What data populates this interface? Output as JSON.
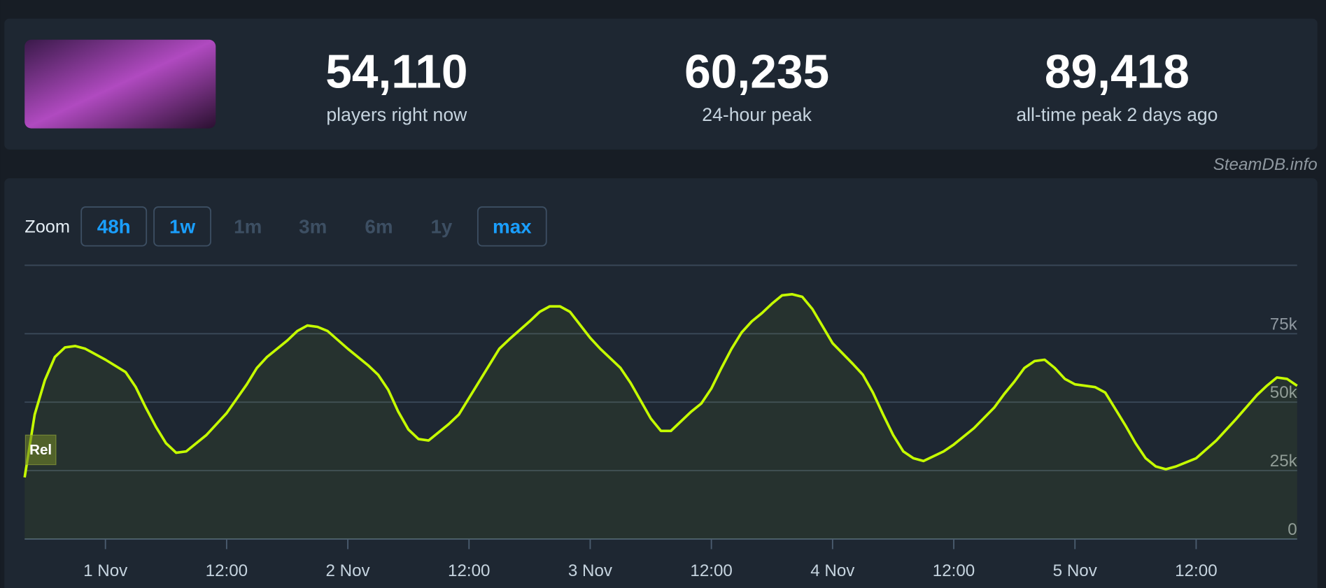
{
  "stats": [
    {
      "value": "54,110",
      "label": "players right now"
    },
    {
      "value": "60,235",
      "label": "24-hour peak"
    },
    {
      "value": "89,418",
      "label": "all-time peak 2 days ago"
    }
  ],
  "source": "SteamDB.info",
  "zoom": {
    "label": "Zoom",
    "options": [
      {
        "label": "48h",
        "enabled": true
      },
      {
        "label": "1w",
        "enabled": true
      },
      {
        "label": "1m",
        "enabled": false
      },
      {
        "label": "3m",
        "enabled": false
      },
      {
        "label": "6m",
        "enabled": false
      },
      {
        "label": "1y",
        "enabled": false
      },
      {
        "label": "max",
        "enabled": true
      }
    ]
  },
  "chart_data": {
    "type": "line",
    "color": "#c6ff00",
    "annotation": "Rel",
    "x": [
      -8,
      -7,
      -6,
      -5,
      -4,
      -3,
      -2,
      0,
      2,
      3,
      4,
      5,
      6,
      7,
      8,
      10,
      12,
      14,
      15,
      16,
      18,
      19,
      20,
      21,
      22,
      24,
      26,
      27,
      28,
      29,
      30,
      31,
      32,
      34,
      35,
      37,
      39,
      40,
      42,
      43,
      44,
      45,
      46,
      48,
      49,
      51,
      52,
      54,
      55,
      56,
      58,
      59,
      60,
      61,
      62,
      63,
      64,
      65,
      66,
      67,
      68,
      69,
      70,
      72,
      74,
      75,
      76,
      77,
      78,
      79,
      80,
      81,
      83,
      84,
      86,
      88,
      89,
      90,
      91,
      92,
      93,
      94,
      95,
      96,
      98,
      99,
      100,
      101,
      102,
      103,
      104,
      105,
      106,
      107,
      108,
      110,
      112,
      114,
      115,
      116,
      117,
      118
    ],
    "values": [
      22500,
      45500,
      58000,
      66500,
      70000,
      70500,
      69500,
      65500,
      61000,
      55500,
      48000,
      41000,
      35000,
      31500,
      32000,
      38000,
      46000,
      56500,
      62500,
      66500,
      72500,
      76000,
      78000,
      77500,
      76000,
      69500,
      63500,
      60000,
      54500,
      46500,
      40000,
      36500,
      36000,
      42000,
      45500,
      57500,
      69500,
      73000,
      79500,
      83000,
      85000,
      85000,
      83000,
      73500,
      69500,
      62500,
      57000,
      44000,
      39500,
      39500,
      46500,
      49500,
      55000,
      62500,
      69500,
      75500,
      79500,
      82500,
      86000,
      89000,
      89400,
      88500,
      84000,
      71500,
      64000,
      60000,
      53500,
      45500,
      38000,
      32000,
      29500,
      28500,
      32000,
      34500,
      40500,
      48000,
      53000,
      57500,
      62500,
      65000,
      65500,
      62500,
      58500,
      56500,
      55500,
      53500,
      47500,
      41500,
      35000,
      29500,
      26500,
      25500,
      26500,
      28000,
      29500,
      36000,
      44000,
      52500,
      56000,
      59000,
      58500,
      56000
    ],
    "xlim": [
      -8,
      118
    ],
    "xticks": [
      {
        "value": 0,
        "label": "1 Nov"
      },
      {
        "value": 12,
        "label": "12:00"
      },
      {
        "value": 24,
        "label": "2 Nov"
      },
      {
        "value": 36,
        "label": "12:00"
      },
      {
        "value": 48,
        "label": "3 Nov"
      },
      {
        "value": 60,
        "label": "12:00"
      },
      {
        "value": 72,
        "label": "4 Nov"
      },
      {
        "value": 84,
        "label": "12:00"
      },
      {
        "value": 96,
        "label": "5 Nov"
      },
      {
        "value": 108,
        "label": "12:00"
      }
    ],
    "ylim": [
      0,
      100000
    ],
    "yticks": [
      0,
      {
        "value": 25000,
        "label": "25k"
      },
      {
        "value": 50000,
        "label": "50k"
      },
      {
        "value": 75000,
        "label": "75k"
      }
    ],
    "grid": true
  }
}
